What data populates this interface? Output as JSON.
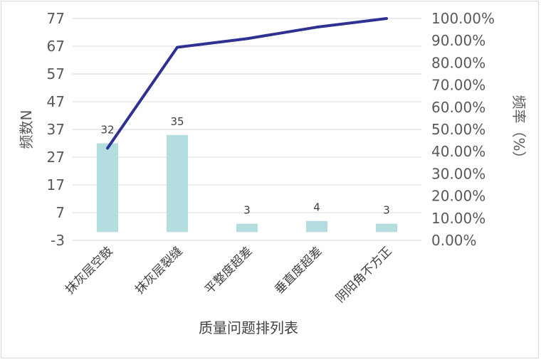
{
  "chart_data": {
    "type": "bar",
    "categories": [
      "抹灰层空鼓",
      "抹灰层裂缝",
      "平整度超差",
      "垂直度超差",
      "阴阳角不方正"
    ],
    "series": [
      {
        "type": "bar",
        "values": [
          32,
          35,
          3,
          4,
          3
        ]
      },
      {
        "type": "line",
        "axis": "secondary",
        "values": [
          41.56,
          87.01,
          90.91,
          96.1,
          100.0
        ]
      }
    ],
    "data_labels": [
      "32",
      "35",
      "3",
      "4",
      "3"
    ],
    "xlabel": "质量问题排列表",
    "ylabel": "频数N",
    "y2label": "频率（%）",
    "ylim": [
      -3,
      77
    ],
    "y_ticks": [
      "77",
      "67",
      "57",
      "47",
      "37",
      "27",
      "17",
      "7",
      "-3"
    ],
    "y2lim": [
      0,
      100
    ],
    "y2_ticks": [
      "100.00%",
      "90.00%",
      "80.00%",
      "70.00%",
      "60.00%",
      "50.00%",
      "40.00%",
      "30.00%",
      "20.00%",
      "10.00%",
      "0.00%"
    ],
    "grid": true,
    "colors": {
      "bar": "#b4dde0",
      "line": "#2e3192",
      "grid": "#d9d9d9",
      "text": "#595959"
    }
  }
}
